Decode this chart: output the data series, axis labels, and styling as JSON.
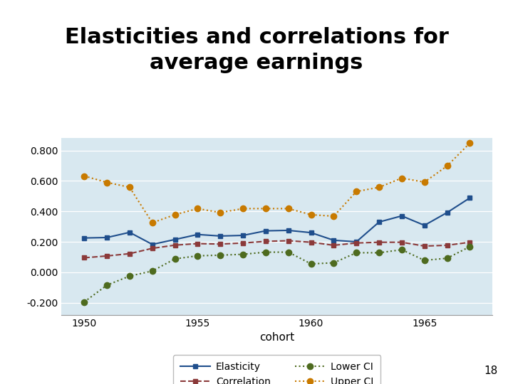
{
  "title": "Elasticities and correlations for\naverage earnings",
  "xlabel": "cohort",
  "ylabel": "",
  "fig_background_color": "#ffffff",
  "plot_bg_color": "#d8e8f0",
  "cohort": [
    1950,
    1951,
    1952,
    1953,
    1954,
    1955,
    1956,
    1957,
    1958,
    1959,
    1960,
    1961,
    1962,
    1963,
    1964,
    1965,
    1966,
    1967
  ],
  "elasticity": [
    0.225,
    0.228,
    0.262,
    0.183,
    0.215,
    0.248,
    0.238,
    0.242,
    0.272,
    0.275,
    0.26,
    0.21,
    0.2,
    0.33,
    0.37,
    0.308,
    0.392,
    0.488
  ],
  "correlation": [
    0.095,
    0.107,
    0.122,
    0.157,
    0.178,
    0.188,
    0.185,
    0.192,
    0.203,
    0.207,
    0.197,
    0.177,
    0.192,
    0.197,
    0.197,
    0.172,
    0.177,
    0.197
  ],
  "lower_ci": [
    -0.195,
    -0.085,
    -0.025,
    0.008,
    0.088,
    0.108,
    0.112,
    0.118,
    0.132,
    0.132,
    0.055,
    0.062,
    0.128,
    0.128,
    0.148,
    0.078,
    0.092,
    0.168
  ],
  "upper_ci": [
    0.632,
    0.59,
    0.558,
    0.325,
    0.378,
    0.418,
    0.392,
    0.418,
    0.418,
    0.418,
    0.378,
    0.368,
    0.53,
    0.558,
    0.618,
    0.592,
    0.698,
    0.848
  ],
  "elasticity_color": "#1f4e8c",
  "correlation_color": "#8b3a3a",
  "lower_ci_color": "#4e6b1f",
  "upper_ci_color": "#c87a00",
  "ylim": [
    -0.28,
    0.88
  ],
  "yticks": [
    -0.2,
    0.0,
    0.2,
    0.4,
    0.6,
    0.8
  ],
  "ytick_labels": [
    "-0.200",
    "0.000",
    "0.200",
    "0.400",
    "0.600",
    "0.800"
  ],
  "xlim": [
    1949.0,
    1968.0
  ],
  "xticks": [
    1950,
    1955,
    1960,
    1965
  ],
  "title_fontsize": 22,
  "axis_fontsize": 11,
  "tick_fontsize": 10,
  "number_label": "18"
}
